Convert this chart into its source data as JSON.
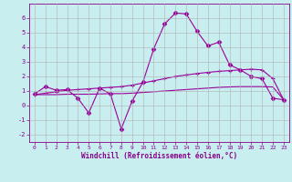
{
  "xlabel": "Windchill (Refroidissement éolien,°C)",
  "background_color": "#c8eef0",
  "grid_color": "#b0b0b0",
  "line_color": "#990099",
  "x_values": [
    0,
    1,
    2,
    3,
    4,
    5,
    6,
    7,
    8,
    9,
    10,
    11,
    12,
    13,
    14,
    15,
    16,
    17,
    18,
    19,
    20,
    21,
    22,
    23
  ],
  "series1": [
    0.8,
    1.3,
    1.05,
    1.1,
    0.5,
    -0.5,
    1.2,
    0.8,
    -1.6,
    0.3,
    1.6,
    3.9,
    5.6,
    6.35,
    6.3,
    5.1,
    4.1,
    4.35,
    2.8,
    2.45,
    2.0,
    1.85,
    0.5,
    0.4
  ],
  "series2": [
    0.75,
    0.85,
    0.95,
    1.05,
    1.1,
    1.15,
    1.2,
    1.25,
    1.3,
    1.4,
    1.55,
    1.7,
    1.85,
    2.0,
    2.1,
    2.2,
    2.28,
    2.35,
    2.4,
    2.45,
    2.5,
    2.45,
    1.85,
    0.4
  ],
  "series3": [
    0.75,
    0.75,
    0.75,
    0.78,
    0.78,
    0.78,
    0.8,
    0.82,
    0.82,
    0.85,
    0.9,
    0.95,
    1.0,
    1.05,
    1.1,
    1.15,
    1.2,
    1.25,
    1.28,
    1.3,
    1.3,
    1.3,
    1.28,
    0.4
  ],
  "ylim": [
    -2.5,
    7.0
  ],
  "xlim": [
    -0.5,
    23.5
  ],
  "yticks": [
    -2,
    -1,
    0,
    1,
    2,
    3,
    4,
    5,
    6
  ],
  "xticks": [
    0,
    1,
    2,
    3,
    4,
    5,
    6,
    7,
    8,
    9,
    10,
    11,
    12,
    13,
    14,
    15,
    16,
    17,
    18,
    19,
    20,
    21,
    22,
    23
  ]
}
